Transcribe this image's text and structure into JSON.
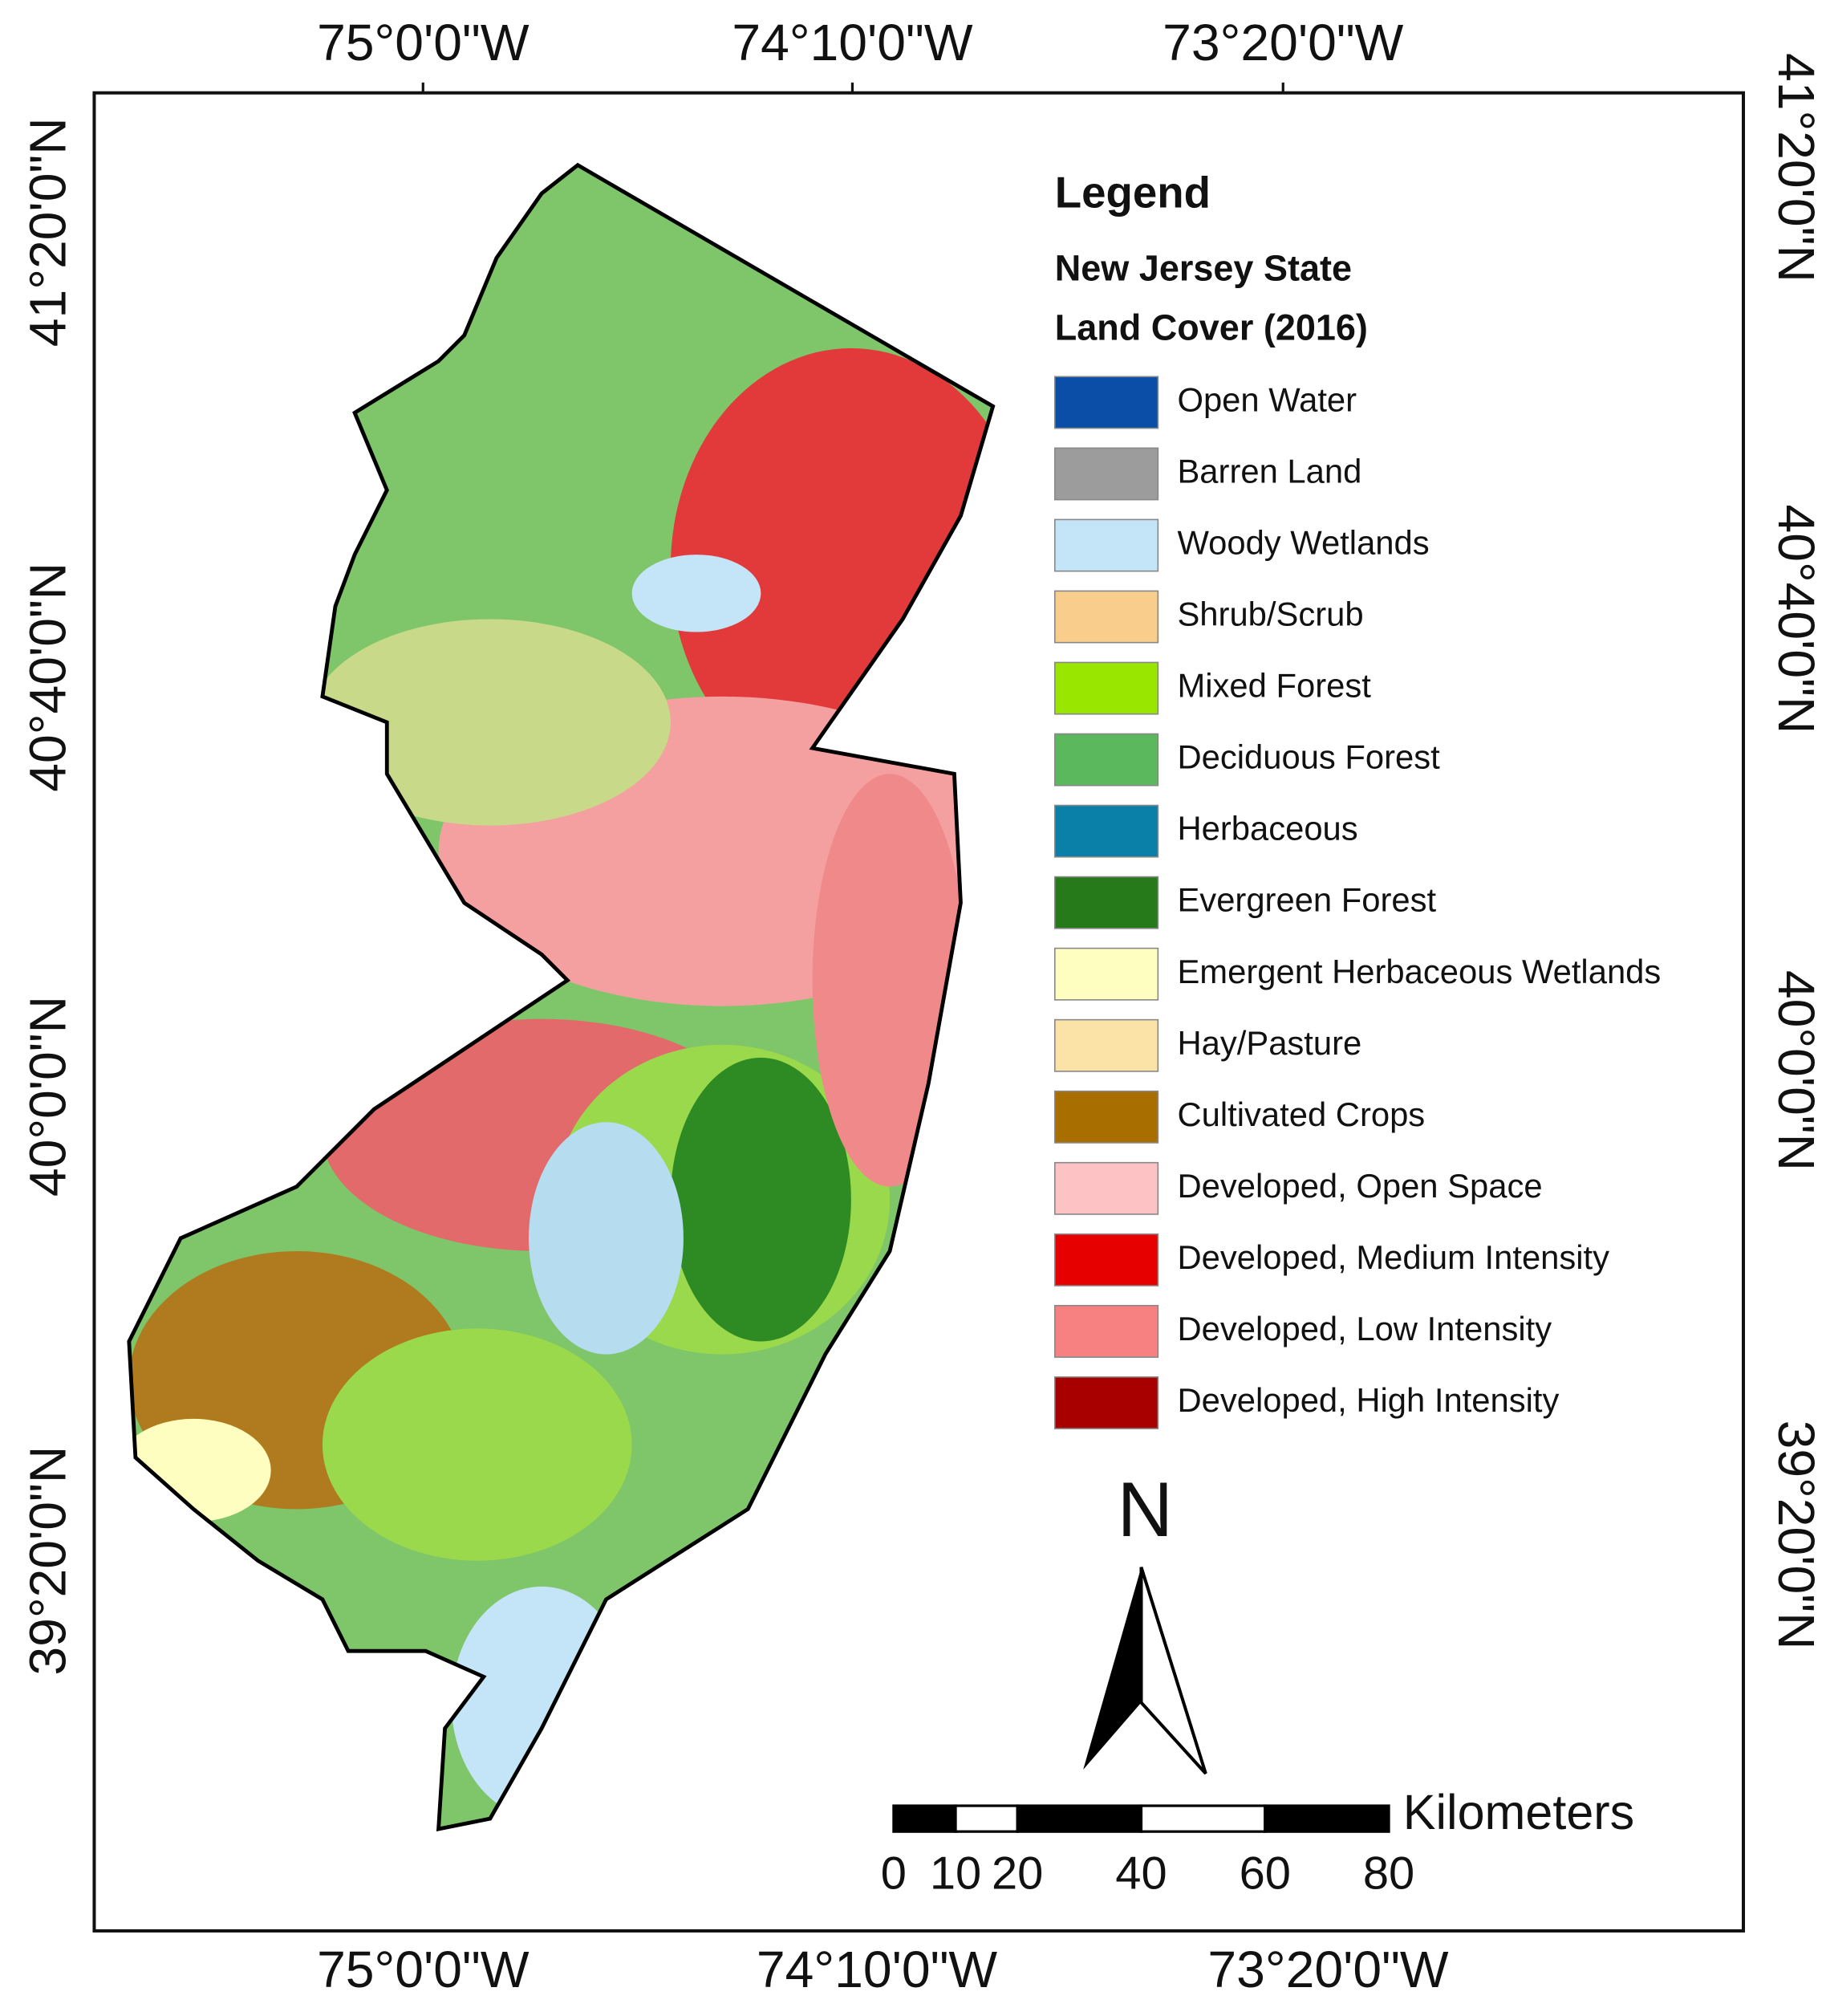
{
  "map": {
    "top_labels": [
      "75°0'0\"W",
      "74°10'0\"W",
      "73°20'0\"W"
    ],
    "bottom_labels": [
      "75°0'0\"W",
      "74°10'0\"W",
      "73°20'0\"W"
    ],
    "left_labels": [
      "41°20'0\"N",
      "40°40'0\"N",
      "40°0'0\"N",
      "39°20'0\"N"
    ],
    "right_labels": [
      "41°20'0\"N",
      "40°40'0\"N",
      "40°0'0\"N",
      "39°20'0\"N"
    ]
  },
  "legend": {
    "heading": "Legend",
    "subtitle": [
      "New Jersey State",
      "Land Cover (2016)"
    ],
    "items": [
      {
        "label": "Open Water",
        "color": "#0a4ea8"
      },
      {
        "label": "Barren Land",
        "color": "#9c9c9c"
      },
      {
        "label": "Woody Wetlands",
        "color": "#c4e4f7"
      },
      {
        "label": "Shrub/Scrub",
        "color": "#f9cd8b"
      },
      {
        "label": "Mixed Forest",
        "color": "#99e600"
      },
      {
        "label": "Deciduous Forest",
        "color": "#5cb85c"
      },
      {
        "label": "Herbaceous",
        "color": "#0a7fa8"
      },
      {
        "label": "Evergreen Forest",
        "color": "#267a1a"
      },
      {
        "label": "Emergent Herbaceous Wetlands",
        "color": "#fefec0"
      },
      {
        "label": "Hay/Pasture",
        "color": "#fbe3a8"
      },
      {
        "label": "Cultivated Crops",
        "color": "#a86e00"
      },
      {
        "label": "Developed, Open Space",
        "color": "#fcc2c4"
      },
      {
        "label": "Developed, Medium Intensity",
        "color": "#e60000"
      },
      {
        "label": "Developed, Low Intensity",
        "color": "#f78080"
      },
      {
        "label": "Developed, High Intensity",
        "color": "#a80000"
      }
    ]
  },
  "north": "N",
  "scale_bar": {
    "unit": "Kilometers",
    "ticks": [
      0,
      10,
      20,
      40,
      60,
      80
    ]
  }
}
